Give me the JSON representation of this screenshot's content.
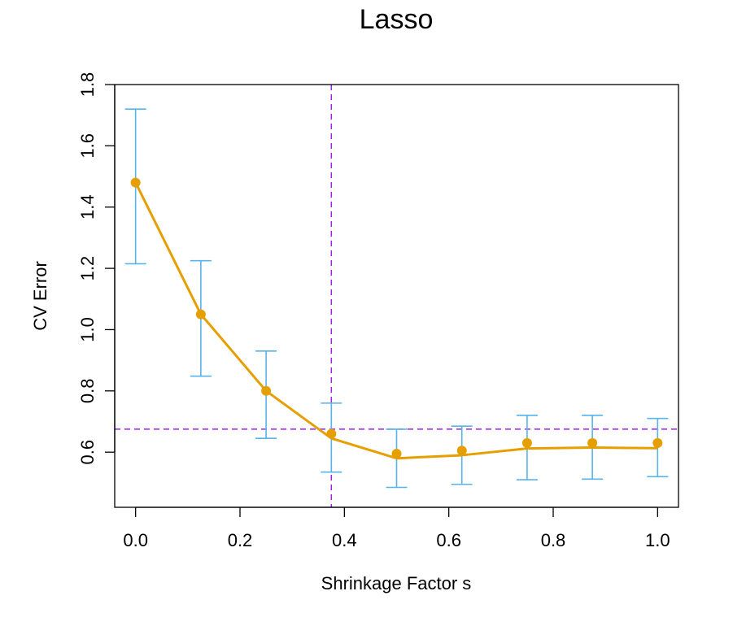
{
  "chart_data": {
    "type": "line",
    "title": "Lasso",
    "xlabel": "Shrinkage Factor s",
    "ylabel": "CV Error",
    "xlim": [
      -0.04,
      1.04
    ],
    "ylim": [
      0.42,
      1.8
    ],
    "xticks": [
      0.0,
      0.2,
      0.4,
      0.6,
      0.8,
      1.0
    ],
    "xtick_labels": [
      "0.0",
      "0.2",
      "0.4",
      "0.6",
      "0.8",
      "1.0"
    ],
    "yticks": [
      0.6,
      0.8,
      1.0,
      1.2,
      1.4,
      1.6,
      1.8
    ],
    "ytick_labels": [
      "0.6",
      "0.8",
      "1.0",
      "1.2",
      "1.4",
      "1.6",
      "1.8"
    ],
    "grid": false,
    "series": [
      {
        "x": [
          0.0,
          0.125,
          0.25,
          0.375,
          0.5,
          0.625,
          0.75,
          0.875,
          1.0
        ],
        "points": [
          1.48,
          1.05,
          0.8,
          0.66,
          0.595,
          0.605,
          0.63,
          0.63,
          0.63
        ],
        "line": [
          1.48,
          1.05,
          0.8,
          0.645,
          0.58,
          0.59,
          0.612,
          0.615,
          0.613
        ],
        "err_upper": [
          1.72,
          1.225,
          0.93,
          0.76,
          0.675,
          0.685,
          0.72,
          0.72,
          0.71
        ],
        "err_lower": [
          1.215,
          0.848,
          0.645,
          0.535,
          0.485,
          0.495,
          0.51,
          0.512,
          0.52
        ]
      }
    ],
    "reference_lines": {
      "vertical_x": 0.375,
      "horizontal_y": 0.675
    },
    "colors": {
      "line": "#E69F00",
      "points": "#E69F00",
      "errorbars": "#56B4E9",
      "reference": "#A020F0"
    }
  }
}
